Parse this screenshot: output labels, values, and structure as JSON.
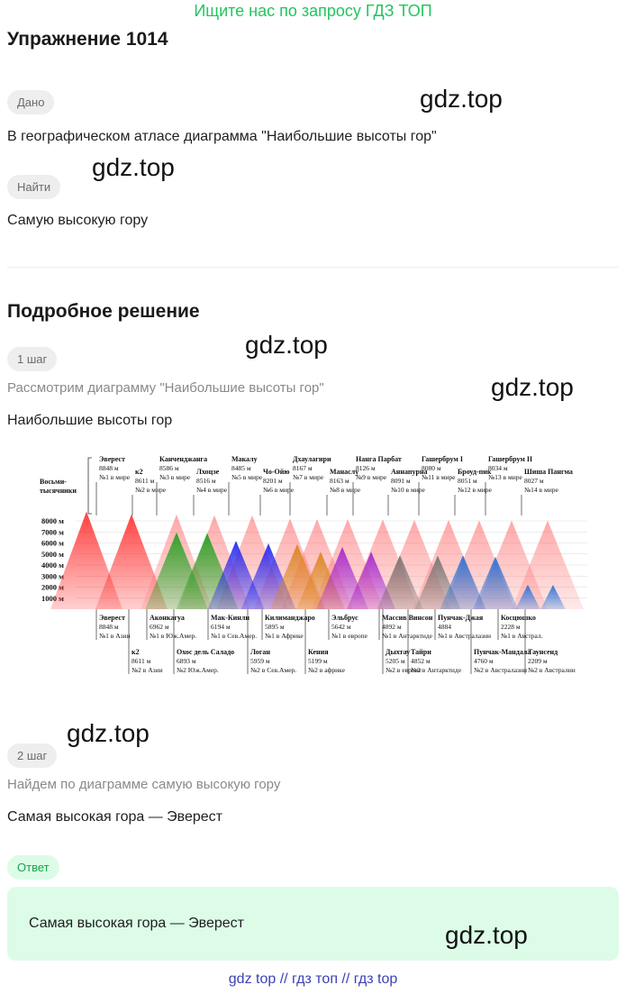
{
  "promo": "Ищите нас по запросу ГДЗ ТОП",
  "title": "Упражнение 1014",
  "given": {
    "label": "Дано",
    "text": "В географическом атласе диаграмма \"Наибольшие высоты гор\""
  },
  "find": {
    "label": "Найти",
    "text": "Самую высокую гору"
  },
  "solution_title": "Подробное решение",
  "step1": {
    "label": "1 шаг",
    "hint": "Рассмотрим диаграмму \"Наибольшие высоты гор\"",
    "text": "Наибольшие высоты гор"
  },
  "step2": {
    "label": "2 шаг",
    "hint": "Найдем по диаграмме самую высокую гору",
    "text": "Самая высокая гора — Эверест"
  },
  "answer": {
    "label": "Ответ",
    "text": "Самая высокая гора — Эверест"
  },
  "watermark": "gdz.top",
  "footer": "gdz top  //  гдз топ  //  гдз top",
  "colors": {
    "accent_green": "#22c55e",
    "answer_bg": "#dcfce7",
    "footer_link": "#3b3fb5"
  },
  "chart_data": {
    "type": "bar",
    "y_ticks": [
      "8000 м",
      "7000 м",
      "6000 м",
      "5000 м",
      "4000 м",
      "3000 м",
      "2000 м",
      "1000 м"
    ],
    "group_label": "Восьми-тысячники",
    "ylim": [
      0,
      9000
    ],
    "top_series": [
      {
        "name": "Эверест",
        "height": "8848 м",
        "rank": "№1 в мире",
        "value": 8848
      },
      {
        "name": "к2",
        "height": "8611 м",
        "rank": "№2 в мире",
        "value": 8611
      },
      {
        "name": "Канченджанга",
        "height": "8586 м",
        "rank": "№3 в мире",
        "value": 8586
      },
      {
        "name": "Лхоцзе",
        "height": "8516 м",
        "rank": "№4 в мире",
        "value": 8516
      },
      {
        "name": "Макалу",
        "height": "8485 м",
        "rank": "№5 в мире",
        "value": 8485
      },
      {
        "name": "Чо-Ойю",
        "height": "8201 м",
        "rank": "№6 в мире",
        "value": 8201
      },
      {
        "name": "Дхаулагири",
        "height": "8167 м",
        "rank": "№7 в мире",
        "value": 8167
      },
      {
        "name": "Манаслу",
        "height": "8163 м",
        "rank": "№8 в мире",
        "value": 8163
      },
      {
        "name": "Нанга Парбат",
        "height": "8126 м",
        "rank": "№9 в мире",
        "value": 8126
      },
      {
        "name": "Аннапурна",
        "height": "8091 м",
        "rank": "№10 в мире",
        "value": 8091
      },
      {
        "name": "Гашербрум I",
        "height": "8080 м",
        "rank": "№11 в мире",
        "value": 8080
      },
      {
        "name": "Броуд-пик",
        "height": "8051 м",
        "rank": "№12 в мире",
        "value": 8051
      },
      {
        "name": "Гашербрум II",
        "height": "8034 м",
        "rank": "№13 в мире",
        "value": 8034
      },
      {
        "name": "Шиша Пангма",
        "height": "8027 м",
        "rank": "№14 в мире",
        "value": 8027
      }
    ],
    "continent_series": [
      {
        "name": "Эверест",
        "height": "8848 м",
        "rank": "№1 в Азии",
        "value": 8848,
        "color": "#ff1a1a"
      },
      {
        "name": "к2",
        "height": "8611 м",
        "rank": "№2 в Азии",
        "value": 8611,
        "color": "#ff1a1a"
      },
      {
        "name": "Аконкагуа",
        "height": "6962 м",
        "rank": "№1 в Юж.Амер.",
        "value": 6962,
        "color": "#1aa01a"
      },
      {
        "name": "Охос дель Саладо",
        "height": "6893 м",
        "rank": "№2 Юж.Амер.",
        "value": 6893,
        "color": "#1aa01a"
      },
      {
        "name": "Мак-Кинли",
        "height": "6194 м",
        "rank": "№1 в Сев.Амер.",
        "value": 6194,
        "color": "#1a1aee"
      },
      {
        "name": "Логан",
        "height": "5959 м",
        "rank": "№2 в Сев.Амер.",
        "value": 5959,
        "color": "#1a1aee"
      },
      {
        "name": "Килиманджаро",
        "height": "5895 м",
        "rank": "№1 в Африке",
        "value": 5895,
        "color": "#d9821a"
      },
      {
        "name": "Кения",
        "height": "5199 м",
        "rank": "№2 в африке",
        "value": 5199,
        "color": "#d9821a"
      },
      {
        "name": "Эльбрус",
        "height": "5642 м",
        "rank": "№1 в европе",
        "value": 5642,
        "color": "#a020d0"
      },
      {
        "name": "Дыхтау",
        "height": "5205 м",
        "rank": "№2 в европе",
        "value": 5205,
        "color": "#a020d0"
      },
      {
        "name": "Массив Винсон",
        "height": "4892 м",
        "rank": "№1 в Антарктиде",
        "value": 4892,
        "color": "#707070"
      },
      {
        "name": "Тайри",
        "height": "4852 м",
        "rank": "№2 в Антарктиде",
        "value": 4852,
        "color": "#707070"
      },
      {
        "name": "Пунчак-Джая",
        "height": "4884",
        "rank": "№1 в Австралазии",
        "value": 4884,
        "color": "#1a6fd9"
      },
      {
        "name": "Пунчак-Мандала",
        "height": "4760 м",
        "rank": "№2 в Австралазии",
        "value": 4760,
        "color": "#1a6fd9"
      },
      {
        "name": "Косцюшко",
        "height": "2228 м",
        "rank": "№1 в Австрал.",
        "value": 2228,
        "color": "#1a6fd9"
      },
      {
        "name": "Таунсенд",
        "height": "2209 м",
        "rank": "№2 в Австралии",
        "value": 2209,
        "color": "#1a6fd9"
      }
    ]
  }
}
